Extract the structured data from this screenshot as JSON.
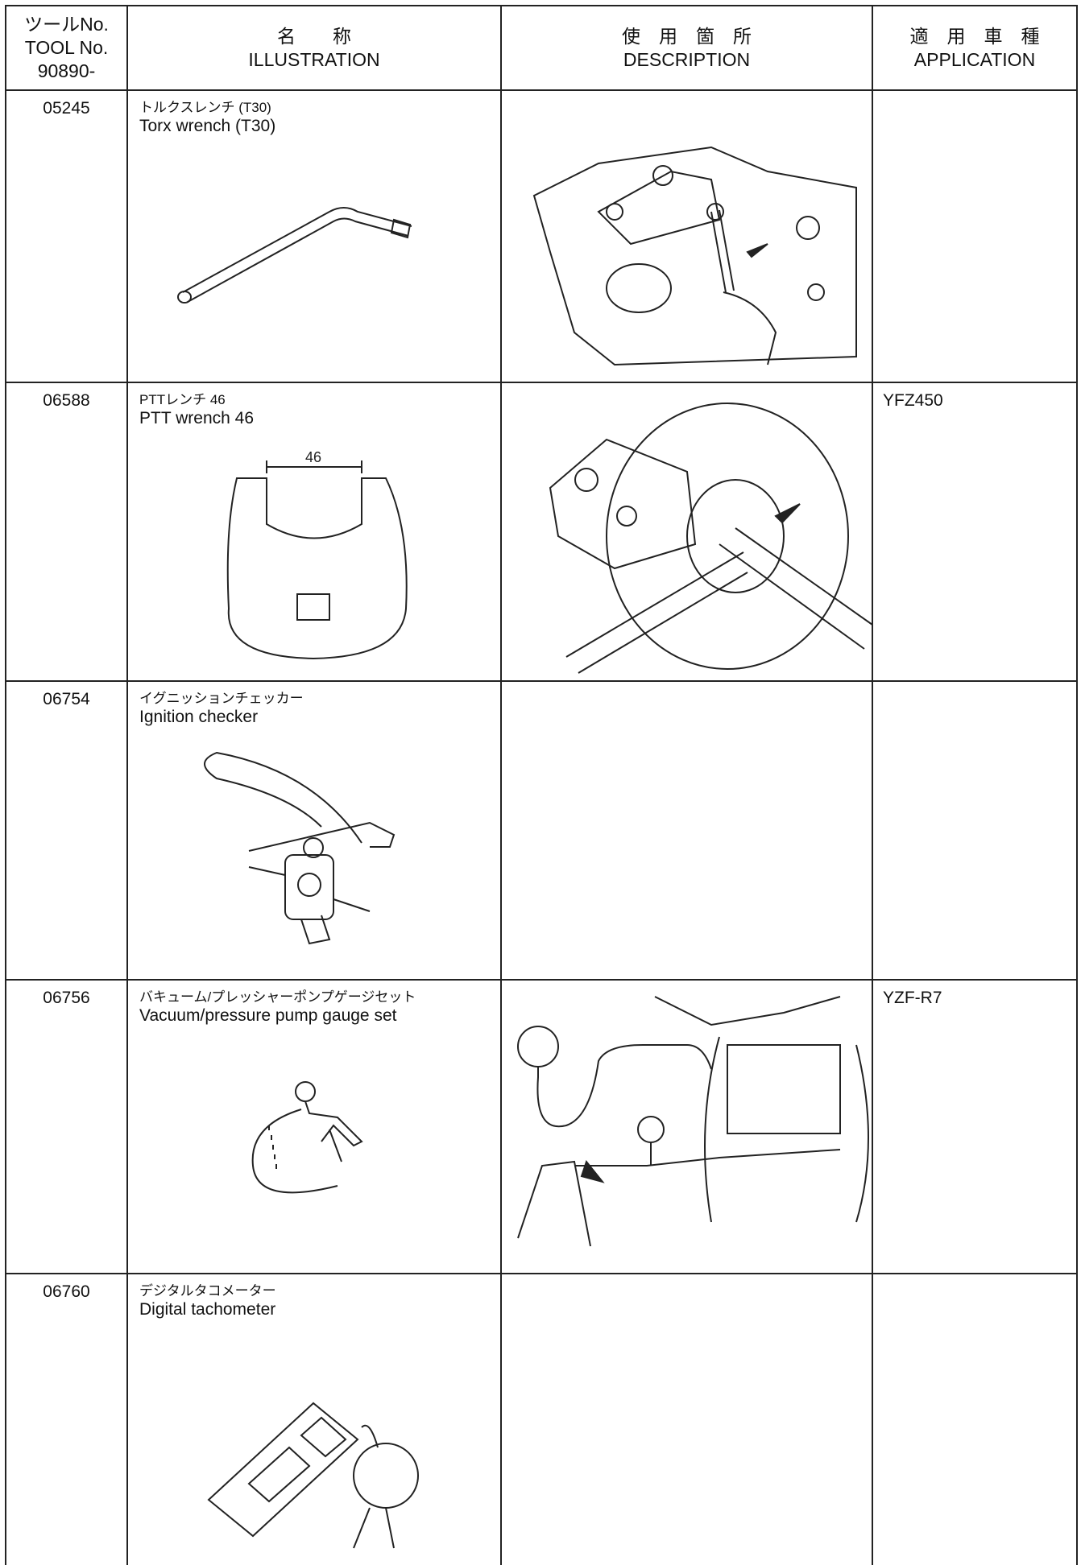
{
  "header": {
    "tool_no": [
      "ツールNo.",
      "TOOL No.",
      "90890-"
    ],
    "illustration": [
      "名　　称",
      "ILLUSTRATION"
    ],
    "description": [
      "使　用　箇　所",
      "DESCRIPTION"
    ],
    "application": [
      "適　用　車　種",
      "APPLICATION"
    ]
  },
  "rows": [
    {
      "tool_no": "05245",
      "name_ja": "トルクスレンチ (T30)",
      "name_en": "Torx wrench (T30)"
    },
    {
      "tool_no": "06588",
      "name_ja": "PTTレンチ 46",
      "name_en": "PTT wrench 46",
      "dimension": "46",
      "application": "YFZ450"
    },
    {
      "tool_no": "06754",
      "name_ja": "イグニッションチェッカー",
      "name_en": "Ignition checker"
    },
    {
      "tool_no": "06756",
      "name_ja": "バキューム/プレッシャーポンプゲージセット",
      "name_en": "Vacuum/pressure pump gauge set",
      "application": "YZF-R7"
    },
    {
      "tool_no": "06760",
      "name_ja": "デジタルタコメーター",
      "name_en": "Digital tachometer"
    }
  ]
}
